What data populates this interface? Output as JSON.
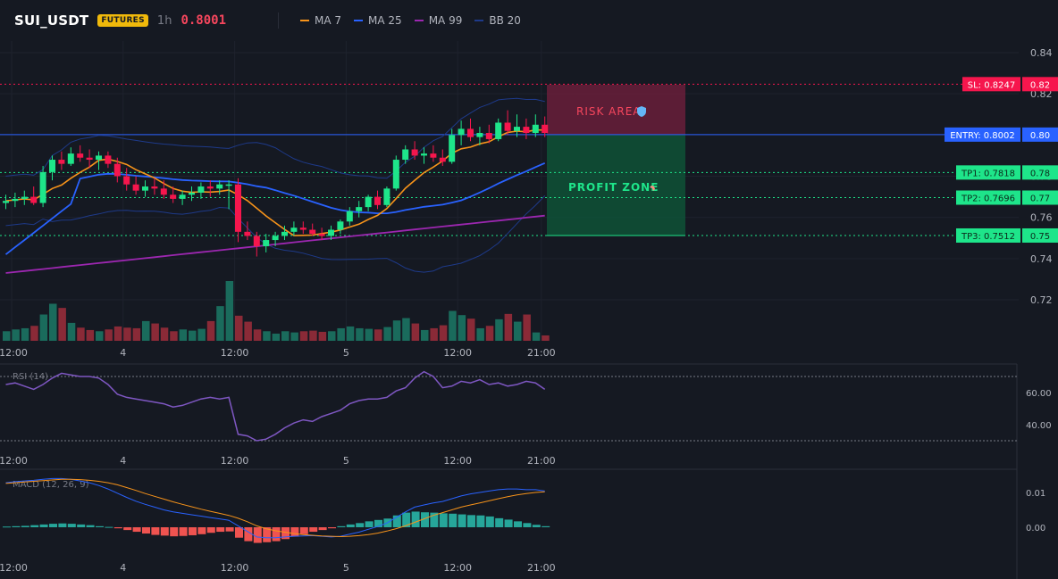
{
  "header": {
    "symbol": "SUI_USDT",
    "badge": "FUTURES",
    "timeframe": "1h",
    "price": "0.8001",
    "legend": [
      {
        "label": "MA 7",
        "color": "#f7931a"
      },
      {
        "label": "MA 25",
        "color": "#2962ff"
      },
      {
        "label": "MA 99",
        "color": "#9c27b0"
      },
      {
        "label": "BB 20",
        "color": "#1e3a8a"
      }
    ]
  },
  "levels": {
    "sl": {
      "label": "SL: 0.8247",
      "value": 0.8247,
      "axis": "0.82",
      "color": "#f6164d"
    },
    "entry": {
      "label": "ENTRY: 0.8002",
      "value": 0.8002,
      "axis": "0.80",
      "color": "#2962ff"
    },
    "tp1": {
      "label": "TP1: 0.7818",
      "value": 0.7818,
      "axis": "0.78",
      "color": "#1ee58a"
    },
    "tp2": {
      "label": "TP2: 0.7696",
      "value": 0.7696,
      "axis": "0.77",
      "color": "#1ee58a"
    },
    "tp3": {
      "label": "TP3: 0.7512",
      "value": 0.7512,
      "axis": "0.75",
      "color": "#1ee58a"
    }
  },
  "zones": {
    "risk_label": "RISK AREA",
    "profit_label": "PROFIT ZONE",
    "risk_icon": "shield-icon",
    "profit_icon": "rocket-icon"
  },
  "chart_data": [
    {
      "type": "candlestick",
      "ylim": [
        0.7,
        0.845
      ],
      "y_ticks": [
        "0.84",
        "0.82",
        "0.80",
        "0.78",
        "0.76",
        "0.74",
        "0.72"
      ],
      "x_ticks": [
        {
          "label": "12:00",
          "index": 0
        },
        {
          "label": "4",
          "index": 12
        },
        {
          "label": "12:00",
          "index": 24
        },
        {
          "label": "5",
          "index": 36
        },
        {
          "label": "12:00",
          "index": 48
        },
        {
          "label": "21:00",
          "index": 57
        }
      ],
      "ohlc": [
        [
          0.767,
          0.771,
          0.764,
          0.768
        ],
        [
          0.768,
          0.772,
          0.765,
          0.769
        ],
        [
          0.769,
          0.773,
          0.766,
          0.77
        ],
        [
          0.77,
          0.775,
          0.766,
          0.767
        ],
        [
          0.767,
          0.785,
          0.765,
          0.782
        ],
        [
          0.782,
          0.79,
          0.778,
          0.788
        ],
        [
          0.788,
          0.792,
          0.783,
          0.786
        ],
        [
          0.786,
          0.794,
          0.785,
          0.791
        ],
        [
          0.791,
          0.795,
          0.787,
          0.789
        ],
        [
          0.789,
          0.793,
          0.784,
          0.788
        ],
        [
          0.788,
          0.792,
          0.783,
          0.79
        ],
        [
          0.79,
          0.792,
          0.784,
          0.786
        ],
        [
          0.786,
          0.789,
          0.777,
          0.78
        ],
        [
          0.78,
          0.784,
          0.773,
          0.776
        ],
        [
          0.776,
          0.78,
          0.771,
          0.773
        ],
        [
          0.773,
          0.778,
          0.77,
          0.775
        ],
        [
          0.775,
          0.779,
          0.771,
          0.774
        ],
        [
          0.774,
          0.778,
          0.769,
          0.771
        ],
        [
          0.771,
          0.775,
          0.767,
          0.769
        ],
        [
          0.769,
          0.773,
          0.766,
          0.771
        ],
        [
          0.771,
          0.775,
          0.768,
          0.772
        ],
        [
          0.772,
          0.777,
          0.769,
          0.775
        ],
        [
          0.775,
          0.778,
          0.77,
          0.774
        ],
        [
          0.774,
          0.778,
          0.771,
          0.776
        ],
        [
          0.776,
          0.778,
          0.764,
          0.776
        ],
        [
          0.776,
          0.779,
          0.748,
          0.753
        ],
        [
          0.753,
          0.758,
          0.749,
          0.751
        ],
        [
          0.751,
          0.753,
          0.741,
          0.746
        ],
        [
          0.746,
          0.752,
          0.743,
          0.749
        ],
        [
          0.749,
          0.753,
          0.746,
          0.751
        ],
        [
          0.751,
          0.756,
          0.749,
          0.753
        ],
        [
          0.753,
          0.758,
          0.751,
          0.755
        ],
        [
          0.755,
          0.758,
          0.752,
          0.754
        ],
        [
          0.754,
          0.757,
          0.751,
          0.752
        ],
        [
          0.752,
          0.755,
          0.749,
          0.751
        ],
        [
          0.751,
          0.756,
          0.749,
          0.754
        ],
        [
          0.754,
          0.759,
          0.752,
          0.758
        ],
        [
          0.758,
          0.765,
          0.756,
          0.763
        ],
        [
          0.763,
          0.768,
          0.76,
          0.765
        ],
        [
          0.765,
          0.771,
          0.763,
          0.77
        ],
        [
          0.77,
          0.773,
          0.764,
          0.766
        ],
        [
          0.766,
          0.775,
          0.765,
          0.774
        ],
        [
          0.774,
          0.79,
          0.773,
          0.788
        ],
        [
          0.788,
          0.795,
          0.786,
          0.793
        ],
        [
          0.793,
          0.797,
          0.788,
          0.79
        ],
        [
          0.79,
          0.794,
          0.786,
          0.791
        ],
        [
          0.791,
          0.795,
          0.787,
          0.789
        ],
        [
          0.789,
          0.793,
          0.785,
          0.787
        ],
        [
          0.787,
          0.803,
          0.786,
          0.8
        ],
        [
          0.8,
          0.807,
          0.795,
          0.803
        ],
        [
          0.803,
          0.808,
          0.797,
          0.799
        ],
        [
          0.799,
          0.804,
          0.795,
          0.801
        ],
        [
          0.801,
          0.805,
          0.796,
          0.798
        ],
        [
          0.798,
          0.808,
          0.797,
          0.806
        ],
        [
          0.806,
          0.812,
          0.8,
          0.802
        ],
        [
          0.802,
          0.81,
          0.799,
          0.804
        ],
        [
          0.804,
          0.808,
          0.798,
          0.801
        ],
        [
          0.801,
          0.81,
          0.799,
          0.805
        ],
        [
          0.805,
          0.809,
          0.799,
          0.801
        ]
      ],
      "volume": [
        0.16,
        0.19,
        0.21,
        0.25,
        0.44,
        0.62,
        0.55,
        0.3,
        0.22,
        0.18,
        0.16,
        0.19,
        0.24,
        0.22,
        0.21,
        0.33,
        0.29,
        0.22,
        0.16,
        0.19,
        0.17,
        0.2,
        0.33,
        0.58,
        1.0,
        0.42,
        0.32,
        0.19,
        0.16,
        0.12,
        0.16,
        0.14,
        0.16,
        0.17,
        0.15,
        0.16,
        0.21,
        0.24,
        0.21,
        0.2,
        0.19,
        0.23,
        0.34,
        0.38,
        0.29,
        0.18,
        0.21,
        0.26,
        0.5,
        0.43,
        0.37,
        0.21,
        0.25,
        0.36,
        0.45,
        0.32,
        0.44,
        0.14,
        0.09
      ],
      "overlays": [
        {
          "name": "MA 7",
          "color": "#f7931a"
        },
        {
          "name": "MA 25",
          "color": "#2962ff"
        },
        {
          "name": "MA 99",
          "color": "#9c27b0"
        },
        {
          "name": "BB 20",
          "color": "#1e3a8a"
        }
      ]
    },
    {
      "type": "line",
      "title": "RSI (14)",
      "ylim": [
        26,
        75
      ],
      "y_ticks": [
        "60.00",
        "40.00"
      ],
      "bands": [
        70,
        30
      ],
      "series": [
        {
          "color": "#7e57c2",
          "values": [
            65,
            66,
            64,
            62,
            65,
            69,
            72,
            71,
            70,
            70,
            69,
            65,
            59,
            57,
            56,
            55,
            54,
            53,
            51,
            52,
            54,
            56,
            57,
            56,
            57,
            34,
            33,
            30,
            31,
            34,
            38,
            41,
            43,
            42,
            45,
            47,
            49,
            53,
            55,
            56,
            56,
            57,
            61,
            63,
            69,
            73,
            70,
            63,
            64,
            67,
            66,
            68,
            65,
            66,
            64,
            65,
            67,
            66,
            62
          ]
        }
      ]
    },
    {
      "type": "bar",
      "title": "MACD (12, 26, 9)",
      "ylim": [
        -0.008,
        0.016
      ],
      "y_ticks": [
        "0.01",
        "0.00"
      ],
      "histogram": [
        0.0002,
        0.0003,
        0.0004,
        0.0006,
        0.0008,
        0.001,
        0.0011,
        0.001,
        0.0008,
        0.0006,
        0.0003,
        0.0001,
        -0.0003,
        -0.0008,
        -0.0013,
        -0.0018,
        -0.0022,
        -0.0024,
        -0.0026,
        -0.0025,
        -0.0023,
        -0.002,
        -0.0016,
        -0.0013,
        -0.0012,
        -0.003,
        -0.004,
        -0.0045,
        -0.0043,
        -0.004,
        -0.0034,
        -0.0027,
        -0.002,
        -0.0013,
        -0.0008,
        -0.0003,
        0.0003,
        0.0008,
        0.0012,
        0.0017,
        0.0021,
        0.0025,
        0.0034,
        0.0042,
        0.0045,
        0.0043,
        0.0042,
        0.004,
        0.0039,
        0.0037,
        0.0035,
        0.0034,
        0.0031,
        0.0026,
        0.0022,
        0.0017,
        0.0012,
        0.0007,
        0.0003
      ],
      "series": [
        {
          "color": "#2962ff",
          "values": [
            0.0128,
            0.0131,
            0.0133,
            0.0135,
            0.0138,
            0.014,
            0.014,
            0.0138,
            0.0133,
            0.0128,
            0.012,
            0.011,
            0.0098,
            0.0086,
            0.0075,
            0.0066,
            0.0058,
            0.005,
            0.0044,
            0.004,
            0.0036,
            0.0032,
            0.0028,
            0.0024,
            0.002,
            0.0004,
            -0.0012,
            -0.0028,
            -0.003,
            -0.003,
            -0.0028,
            -0.0026,
            -0.0025,
            -0.0024,
            -0.0026,
            -0.0028,
            -0.0026,
            -0.002,
            -0.0014,
            -0.0006,
            0.0002,
            0.0012,
            0.0028,
            0.0044,
            0.0058,
            0.0064,
            0.007,
            0.0074,
            0.0082,
            0.009,
            0.0096,
            0.01,
            0.0104,
            0.0108,
            0.011,
            0.011,
            0.0108,
            0.0108,
            0.0104
          ]
        },
        {
          "color": "#f7931a",
          "values": [
            0.0126,
            0.0128,
            0.013,
            0.0132,
            0.0134,
            0.0136,
            0.0138,
            0.0138,
            0.0137,
            0.0135,
            0.0132,
            0.0128,
            0.0122,
            0.0114,
            0.0106,
            0.0097,
            0.0089,
            0.0081,
            0.0073,
            0.0066,
            0.0059,
            0.0052,
            0.0046,
            0.004,
            0.0034,
            0.0026,
            0.0016,
            0.0004,
            -0.0004,
            -0.001,
            -0.0014,
            -0.0018,
            -0.0021,
            -0.0023,
            -0.0025,
            -0.0026,
            -0.0027,
            -0.0026,
            -0.0024,
            -0.0021,
            -0.0017,
            -0.0011,
            -0.0004,
            0.0004,
            0.0014,
            0.0024,
            0.0034,
            0.0042,
            0.005,
            0.0058,
            0.0064,
            0.007,
            0.0076,
            0.0082,
            0.0088,
            0.0093,
            0.0097,
            0.01,
            0.0102
          ]
        }
      ]
    }
  ]
}
